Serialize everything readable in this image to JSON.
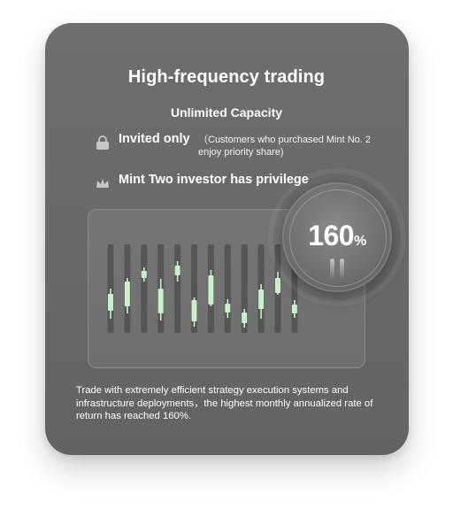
{
  "card": {
    "title": "High-frequency trading",
    "subtitle": "Unlimited Capacity",
    "features": [
      {
        "icon": "lock-icon",
        "label": "Invited only",
        "note": "（Customers who purchased Mint No. 2 enjoy priority share)"
      },
      {
        "icon": "crown-icon",
        "label": "Mint Two investor has privilege"
      }
    ],
    "gauge": {
      "value": "160",
      "unit": "%"
    },
    "description": "Trade with extremely efficient strategy execution systems and infrastructure deployments，the highest monthly annualized rate of return has reached 160%."
  },
  "colors": {
    "card_bg": "#6b6b6b",
    "text": "#ffffff",
    "candle_green": "#c8f2c8",
    "track_dark": "#3e3e3e"
  },
  "chart_data": {
    "type": "candlestick",
    "candles": [
      {
        "bodyLow": 0.25,
        "bodyHigh": 0.44,
        "wickLow": 0.16,
        "wickHigh": 0.5
      },
      {
        "bodyLow": 0.3,
        "bodyHigh": 0.58,
        "wickLow": 0.22,
        "wickHigh": 0.62
      },
      {
        "bodyLow": 0.62,
        "bodyHigh": 0.7,
        "wickLow": 0.58,
        "wickHigh": 0.74
      },
      {
        "bodyLow": 0.22,
        "bodyHigh": 0.5,
        "wickLow": 0.14,
        "wickHigh": 0.61
      },
      {
        "bodyLow": 0.65,
        "bodyHigh": 0.76,
        "wickLow": 0.58,
        "wickHigh": 0.81
      },
      {
        "bodyLow": 0.13,
        "bodyHigh": 0.37,
        "wickLow": 0.07,
        "wickHigh": 0.4
      },
      {
        "bodyLow": 0.32,
        "bodyHigh": 0.65,
        "wickLow": 0.3,
        "wickHigh": 0.71
      },
      {
        "bodyLow": 0.23,
        "bodyHigh": 0.33,
        "wickLow": 0.17,
        "wickHigh": 0.38
      },
      {
        "bodyLow": 0.11,
        "bodyHigh": 0.23,
        "wickLow": 0.06,
        "wickHigh": 0.27
      },
      {
        "bodyLow": 0.27,
        "bodyHigh": 0.49,
        "wickLow": 0.16,
        "wickHigh": 0.55
      },
      {
        "bodyLow": 0.45,
        "bodyHigh": 0.62,
        "wickLow": 0.43,
        "wickHigh": 0.69
      },
      {
        "bodyLow": 0.22,
        "bodyHigh": 0.32,
        "wickLow": 0.17,
        "wickHigh": 0.37
      }
    ]
  }
}
